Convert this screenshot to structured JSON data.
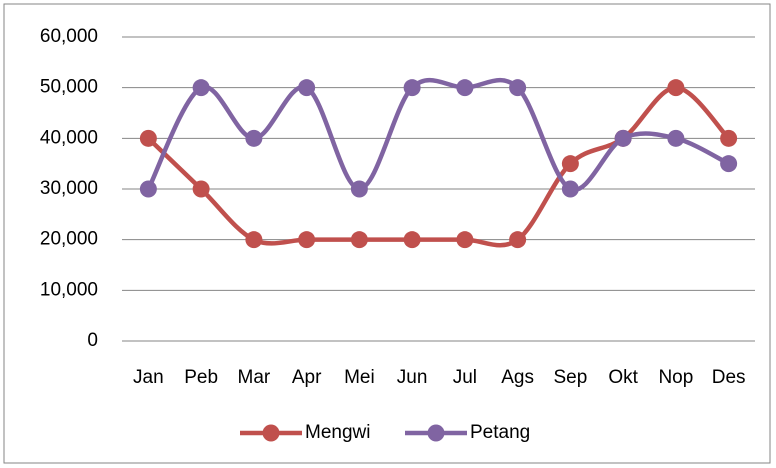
{
  "chart_data": {
    "type": "line",
    "categories": [
      "Jan",
      "Peb",
      "Mar",
      "Apr",
      "Mei",
      "Jun",
      "Jul",
      "Ags",
      "Sep",
      "Okt",
      "Nop",
      "Des"
    ],
    "series": [
      {
        "name": "Mengwi",
        "color": "#c0504d",
        "values": [
          40000,
          30000,
          20000,
          20000,
          20000,
          20000,
          20000,
          20000,
          35000,
          40000,
          50000,
          40000
        ]
      },
      {
        "name": "Petang",
        "color": "#8064a2",
        "values": [
          30000,
          50000,
          40000,
          50000,
          30000,
          50000,
          50000,
          50000,
          30000,
          40000,
          40000,
          35000
        ]
      }
    ],
    "ylim": [
      0,
      60000
    ],
    "yticks": [
      0,
      {
        "value": 10000,
        "label": "10,000"
      },
      {
        "value": 20000,
        "label": "20,000"
      },
      {
        "value": 30000,
        "label": "30,000"
      },
      {
        "value": 40000,
        "label": "40,000"
      },
      {
        "value": 50000,
        "label": "50,000"
      },
      {
        "value": 60000,
        "label": "60,000"
      }
    ],
    "grid": true,
    "smooth": true,
    "legend": "bottom"
  }
}
